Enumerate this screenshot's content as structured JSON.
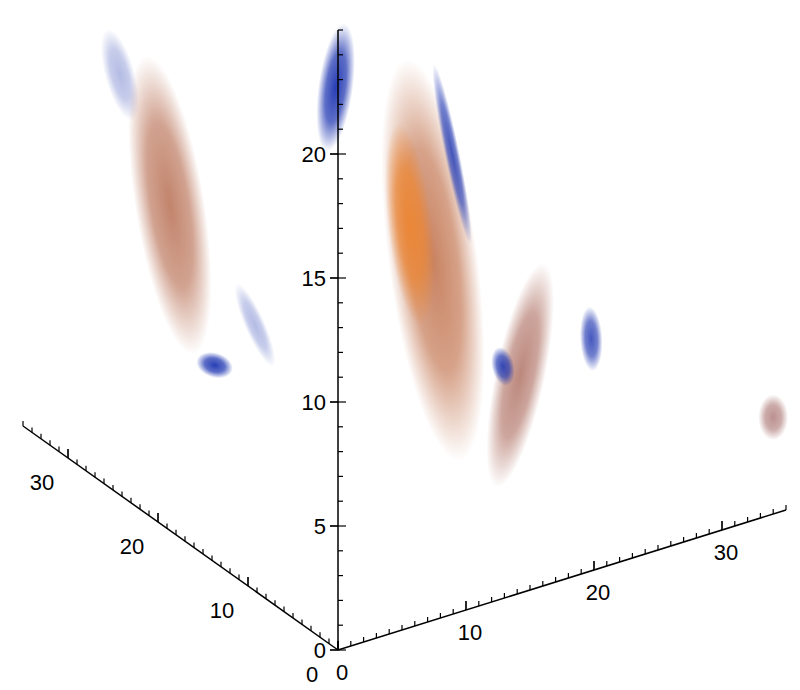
{
  "chart_data": {
    "type": "volume3d",
    "xlim": [
      0,
      35
    ],
    "ylim": [
      0,
      35
    ],
    "zlim": [
      0,
      25
    ],
    "xticks": [
      0,
      10,
      20,
      30
    ],
    "yticks": [
      0,
      10,
      20,
      30
    ],
    "zticks": [
      0,
      5,
      10,
      15,
      20
    ],
    "tick_labels": true,
    "structures": [
      {
        "from": [
          1.9,
          28,
          17.1
        ],
        "to": [
          3.4,
          28,
          14.0
        ],
        "radius": 0.6,
        "value": -0.3
      },
      {
        "from": [
          5.0,
          28,
          14.95
        ],
        "to": [
          8.1,
          28,
          4.37
        ],
        "radius": 1.4,
        "value": 0.5
      },
      {
        "from": [
          12.0,
          28,
          5.35
        ],
        "to": [
          14.4,
          28,
          2.15
        ],
        "radius": 0.4,
        "value": -0.3
      },
      {
        "from": [
          9.3,
          28,
          2.88
        ],
        "to": [
          10.8,
          28,
          2.4
        ],
        "radius": 0.5,
        "value": -0.9
      },
      {
        "from": [
          12.7,
          10,
          17.95
        ],
        "to": [
          16.2,
          10,
          3.68
        ],
        "radius": 1.8,
        "value": 0.6
      },
      {
        "from": [
          11.9,
          10,
          16.1
        ],
        "to": [
          13.4,
          10,
          8.96
        ],
        "radius": 0.9,
        "value": 0.95
      },
      {
        "from": [
          7.4,
          10,
          21.0
        ],
        "to": [
          6.3,
          10,
          17.0
        ],
        "radius": 0.7,
        "value": -0.9
      },
      {
        "from": [
          14.6,
          10,
          18.5
        ],
        "to": [
          17.3,
          10,
          11.2
        ],
        "radius": 0.3,
        "value": -0.8
      },
      {
        "from": [
          19.3,
          5,
          10.5
        ],
        "to": [
          16.2,
          5,
          3.35
        ],
        "radius": 1.0,
        "value": 0.35
      },
      {
        "from": [
          16.2,
          5,
          8.0
        ],
        "to": [
          16.6,
          5,
          7.0
        ],
        "radius": 0.45,
        "value": -0.85
      },
      {
        "from": [
          23.2,
          5,
          8.5
        ],
        "to": [
          23.4,
          5,
          6.5
        ],
        "radius": 0.45,
        "value": -0.8
      },
      {
        "from": [
          34.0,
          0,
          4.4
        ],
        "to": [
          34.0,
          0,
          3.4
        ],
        "radius": 0.6,
        "value": 0.2
      }
    ]
  }
}
